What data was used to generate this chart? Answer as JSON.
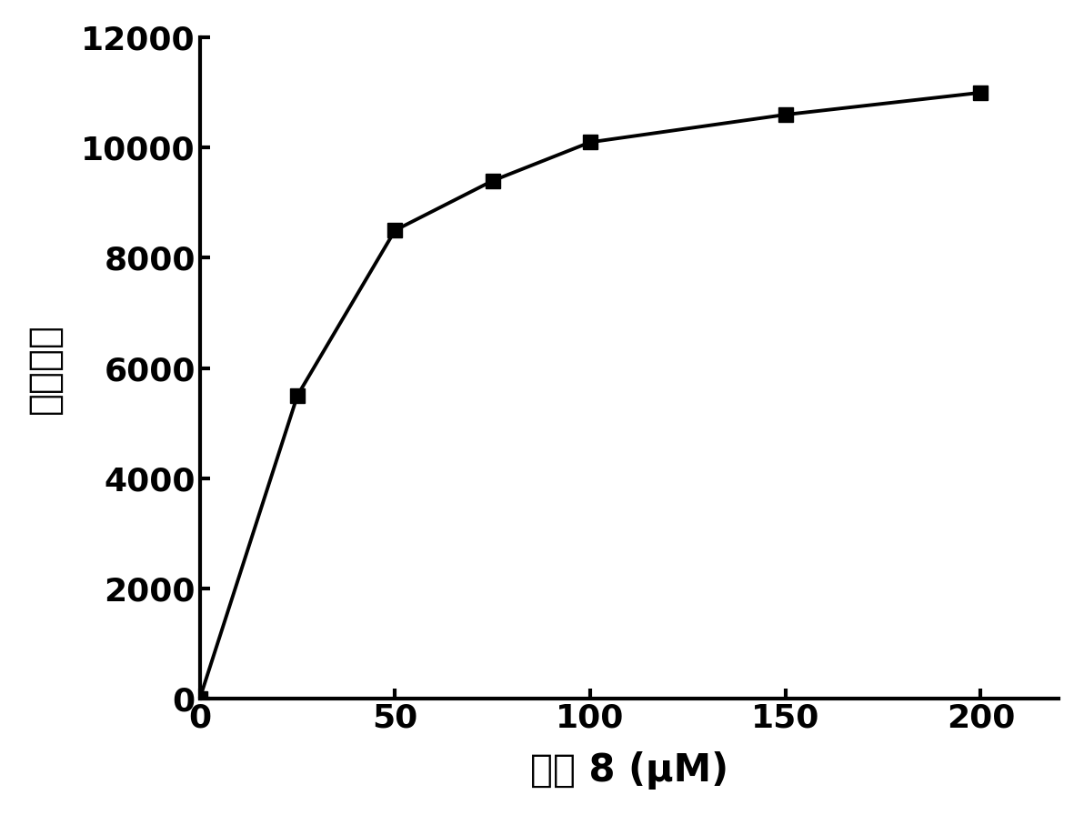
{
  "x": [
    0,
    25,
    50,
    75,
    100,
    150,
    200
  ],
  "y": [
    0,
    5500,
    8500,
    9400,
    10100,
    10600,
    11000
  ],
  "xlabel": "探针 8 (μM)",
  "ylabel": "荧光强度",
  "xlim": [
    0,
    220
  ],
  "ylim": [
    0,
    12000
  ],
  "xticks": [
    0,
    50,
    100,
    150,
    200
  ],
  "yticks": [
    0,
    2000,
    4000,
    6000,
    8000,
    10000,
    12000
  ],
  "line_color": "#000000",
  "marker": "s",
  "marker_size": 11,
  "linewidth": 2.8,
  "background_color": "#ffffff",
  "tick_fontsize": 26,
  "label_fontsize": 30,
  "spine_linewidth": 3.0
}
